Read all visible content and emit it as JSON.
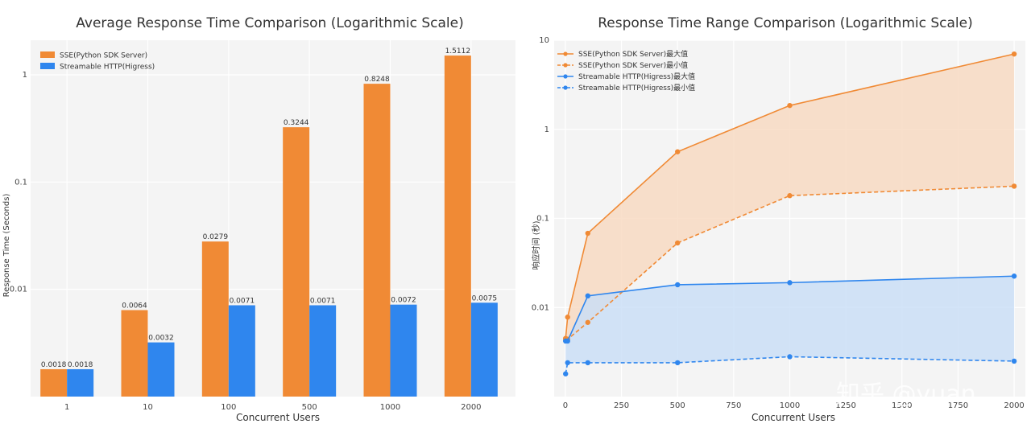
{
  "watermark": "知乎 @yuan",
  "colors": {
    "sse": "#f08a35",
    "http": "#2f86ee",
    "panel_bg": "#f4f4f4",
    "grid": "#ffffff"
  },
  "chart_data": [
    {
      "type": "bar",
      "title": "Average Response Time Comparison (Logarithmic Scale)",
      "xlabel": "Concurrent  Users",
      "ylabel": "Response Time (Seconds)",
      "yscale": "log",
      "ylim": [
        0.001,
        2.1
      ],
      "yticks": [
        0.01,
        0.1,
        1
      ],
      "ytick_labels": [
        "0.01",
        "0.1",
        "1"
      ],
      "categories": [
        "1",
        "10",
        "100",
        "500",
        "1000",
        "2000"
      ],
      "legend_position": "top-left",
      "series": [
        {
          "name": "SSE(Python SDK Server)",
          "color": "#f08a35",
          "values": [
            0.0018,
            0.0064,
            0.0279,
            0.3244,
            0.8248,
            1.5112
          ],
          "labels": [
            "0.0018",
            "0.0064",
            "0.0279",
            "0.3244",
            "0.8248",
            "1.5112"
          ]
        },
        {
          "name": "Streamable HTTP(Higress)",
          "color": "#2f86ee",
          "values": [
            0.0018,
            0.0032,
            0.0071,
            0.0071,
            0.0072,
            0.0075
          ],
          "labels": [
            "0.0018",
            "0.0032",
            "0.0071",
            "0.0071",
            "0.0072",
            "0.0075"
          ]
        }
      ]
    },
    {
      "type": "line",
      "title": "Response Time Range Comparison (Logarithmic Scale)",
      "xlabel": "Concurrent  Users",
      "ylabel": "响应时间 (秒)",
      "yscale": "log",
      "ylim": [
        0.001,
        10
      ],
      "xlim": [
        -50,
        2050
      ],
      "xticks": [
        0,
        250,
        500,
        750,
        1000,
        1250,
        1500,
        1750,
        2000
      ],
      "xtick_labels": [
        "0",
        "250",
        "500",
        "750",
        "1000",
        "1250",
        "1500",
        "1750",
        "2000"
      ],
      "yticks": [
        0.01,
        0.1,
        1,
        10
      ],
      "ytick_labels": [
        "0.01",
        "0.1",
        "1",
        "10"
      ],
      "x": [
        1,
        10,
        100,
        500,
        1000,
        2000
      ],
      "legend_position": "top-left",
      "series": [
        {
          "name": "SSE(Python SDK Server)最大值",
          "color": "#f08a35",
          "dashed": false,
          "values": [
            0.0045,
            0.0078,
            0.068,
            0.56,
            1.85,
            7.0
          ]
        },
        {
          "name": "SSE(Python SDK Server)最小值",
          "color": "#f08a35",
          "dashed": true,
          "values": [
            0.0044,
            0.0044,
            0.0068,
            0.053,
            0.18,
            0.23
          ]
        },
        {
          "name": "Streamable HTTP(Higress)最大值",
          "color": "#2f86ee",
          "dashed": false,
          "values": [
            0.0042,
            0.0042,
            0.0135,
            0.018,
            0.019,
            0.0225
          ]
        },
        {
          "name": "Streamable HTTP(Higress)最小值",
          "color": "#2f86ee",
          "dashed": true,
          "values": [
            0.0018,
            0.0024,
            0.0024,
            0.0024,
            0.0028,
            0.0025
          ]
        }
      ],
      "fills": [
        {
          "between": [
            0,
            1
          ],
          "color": "#f8d8bf"
        },
        {
          "between": [
            2,
            3
          ],
          "color": "#c8ddf6"
        }
      ]
    }
  ]
}
